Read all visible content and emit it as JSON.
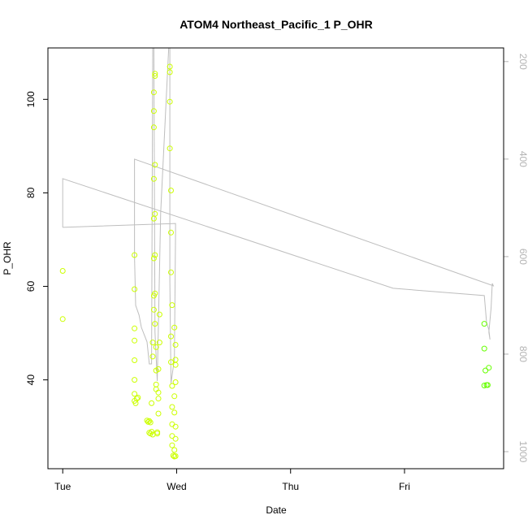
{
  "chart_data": {
    "type": "scatter",
    "title": "ATOM4 Northeast_Pacific_1 P_OHR",
    "xlabel": "Date",
    "ylabel": "P_OHR",
    "x_ticks": [
      {
        "value": 0,
        "label": "Tue"
      },
      {
        "value": 1,
        "label": "Wed"
      },
      {
        "value": 2,
        "label": "Thu"
      },
      {
        "value": 3,
        "label": "Fri"
      }
    ],
    "xlim": [
      -0.13,
      3.87
    ],
    "ylim": [
      21,
      111
    ],
    "y_ticks": [
      40,
      60,
      80,
      100
    ],
    "y2_ticks": [
      200,
      400,
      600,
      800,
      1000
    ],
    "y2lim": [
      1035,
      172
    ],
    "y2_reversed": true,
    "grid": false,
    "legend": "none",
    "colors": {
      "points_early": "#ccff00",
      "points_late": "#66ff00",
      "profile_line": "#bebebe",
      "right_axis": "#b3b3b3"
    },
    "series": [
      {
        "values": [
          [
            0.0,
            63.3
          ],
          [
            0.0,
            53.0
          ],
          [
            0.63,
            66.7
          ],
          [
            0.63,
            59.4
          ],
          [
            0.63,
            51.0
          ],
          [
            0.63,
            48.4
          ],
          [
            0.63,
            44.2
          ],
          [
            0.63,
            40.0
          ],
          [
            0.63,
            37.0
          ],
          [
            0.63,
            35.5
          ],
          [
            0.64,
            35.0
          ],
          [
            0.65,
            36.0
          ],
          [
            0.66,
            36.2
          ],
          [
            0.74,
            31.3
          ],
          [
            0.75,
            31.0
          ],
          [
            0.76,
            31.2
          ],
          [
            0.77,
            30.9
          ],
          [
            0.76,
            28.7
          ],
          [
            0.77,
            28.5
          ],
          [
            0.78,
            28.9
          ],
          [
            0.79,
            28.3
          ],
          [
            0.78,
            35.0
          ],
          [
            0.79,
            45.0
          ],
          [
            0.79,
            48.0
          ],
          [
            0.8,
            55.0
          ],
          [
            0.8,
            58.0
          ],
          [
            0.8,
            66.0
          ],
          [
            0.8,
            74.5
          ],
          [
            0.8,
            83.0
          ],
          [
            0.8,
            94.0
          ],
          [
            0.8,
            97.5
          ],
          [
            0.8,
            101.5
          ],
          [
            0.81,
            105.0
          ],
          [
            0.81,
            105.5
          ],
          [
            0.81,
            86.0
          ],
          [
            0.81,
            75.5
          ],
          [
            0.81,
            66.7
          ],
          [
            0.81,
            58.5
          ],
          [
            0.81,
            52.0
          ],
          [
            0.82,
            47.0
          ],
          [
            0.82,
            42.0
          ],
          [
            0.82,
            39.0
          ],
          [
            0.82,
            38.0
          ],
          [
            0.83,
            28.5
          ],
          [
            0.83,
            28.8
          ],
          [
            0.84,
            36.0
          ],
          [
            0.84,
            37.3
          ],
          [
            0.84,
            42.3
          ],
          [
            0.85,
            48.0
          ],
          [
            0.85,
            54.0
          ],
          [
            0.84,
            32.8
          ],
          [
            0.94,
            107.0
          ],
          [
            0.94,
            105.8
          ],
          [
            0.94,
            99.5
          ],
          [
            0.94,
            89.5
          ],
          [
            0.95,
            80.5
          ],
          [
            0.95,
            71.5
          ],
          [
            0.95,
            63.0
          ],
          [
            0.96,
            56.0
          ],
          [
            0.95,
            49.3
          ],
          [
            0.95,
            43.8
          ],
          [
            0.96,
            38.7
          ],
          [
            0.96,
            34.2
          ],
          [
            0.96,
            30.5
          ],
          [
            0.96,
            28.0
          ],
          [
            0.96,
            26.0
          ],
          [
            0.97,
            23.8
          ],
          [
            0.98,
            23.6
          ],
          [
            0.99,
            23.7
          ],
          [
            0.98,
            33.0
          ],
          [
            0.98,
            36.5
          ],
          [
            0.99,
            39.5
          ],
          [
            0.99,
            43.2
          ],
          [
            0.99,
            44.3
          ],
          [
            0.99,
            47.5
          ],
          [
            0.98,
            51.2
          ],
          [
            0.99,
            30.0
          ],
          [
            0.99,
            27.4
          ],
          [
            0.98,
            25.0
          ]
        ]
      },
      {
        "values": [
          [
            3.7,
            52.0
          ],
          [
            3.7,
            46.7
          ],
          [
            3.71,
            42.0
          ],
          [
            3.74,
            42.6
          ],
          [
            3.73,
            38.9
          ],
          [
            3.7,
            38.8
          ],
          [
            3.72,
            38.9
          ]
        ]
      }
    ],
    "profile_line_depth": [
      [
        0.0,
        540
      ],
      [
        0.0,
        440
      ],
      [
        2.9,
        665
      ],
      [
        3.7,
        680
      ],
      [
        3.72,
        735
      ],
      [
        3.74,
        750
      ],
      [
        3.75,
        770
      ],
      [
        3.74,
        755
      ],
      [
        3.76,
        705
      ],
      [
        3.77,
        655
      ],
      [
        3.78,
        660
      ],
      [
        0.63,
        400
      ],
      [
        0.63,
        600
      ],
      [
        0.64,
        700
      ],
      [
        0.67,
        720
      ],
      [
        0.69,
        745
      ],
      [
        0.74,
        775
      ],
      [
        0.76,
        820
      ],
      [
        0.78,
        820
      ],
      [
        0.79,
        172
      ],
      [
        0.8,
        172
      ],
      [
        0.81,
        755
      ],
      [
        0.83,
        855
      ],
      [
        0.86,
        510
      ],
      [
        0.93,
        172
      ],
      [
        0.94,
        172
      ],
      [
        0.94,
        650
      ],
      [
        0.95,
        860
      ],
      [
        0.98,
        810
      ],
      [
        0.99,
        550
      ],
      [
        0.99,
        532
      ],
      [
        0.0,
        540
      ]
    ]
  }
}
